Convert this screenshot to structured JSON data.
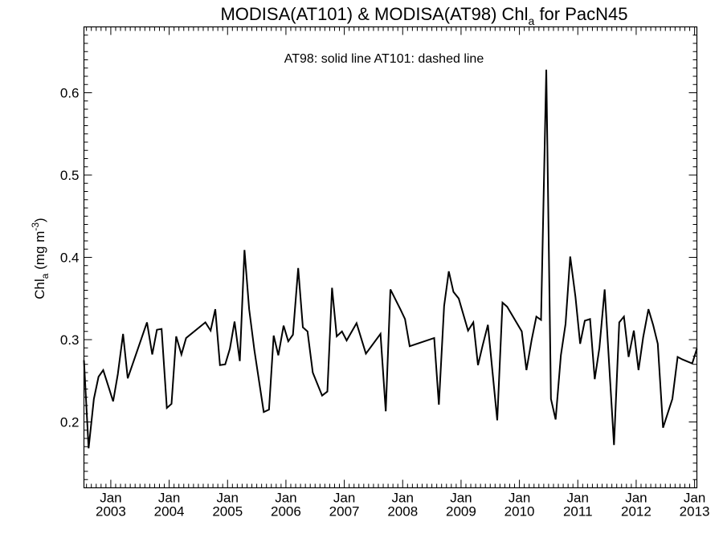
{
  "chart_data": {
    "type": "line",
    "title_main": "MODISA(AT101) & MODISA(AT98)  Chl",
    "title_sub": "a",
    "title_rest": " for PacN45",
    "ylabel_main": "Chl",
    "ylabel_sub": "a",
    "ylabel_units": " (mg m",
    "ylabel_exp": "-3",
    "ylabel_close": ")",
    "annotation": "AT98: solid line   AT101: dashed line",
    "ylim": [
      0.12,
      0.68
    ],
    "xlim": [
      2002.54,
      2013.04
    ],
    "y_ticks": [
      0.2,
      0.3,
      0.4,
      0.5,
      0.6
    ],
    "y_tick_labels": [
      "0.2",
      "0.3",
      "0.4",
      "0.5",
      "0.6"
    ],
    "x_ticks": [
      2003.0,
      2004.0,
      2005.0,
      2006.0,
      2007.0,
      2008.0,
      2009.0,
      2010.0,
      2011.0,
      2012.0,
      2013.0
    ],
    "x_tick_month": [
      "Jan",
      "Jan",
      "Jan",
      "Jan",
      "Jan",
      "Jan",
      "Jan",
      "Jan",
      "Jan",
      "Jan",
      "Jan"
    ],
    "x_tick_year": [
      "2003",
      "2004",
      "2005",
      "2006",
      "2007",
      "2008",
      "2009",
      "2010",
      "2011",
      "2012",
      "2013"
    ],
    "series": [
      {
        "style": "solid",
        "x": [
          2002.54,
          2002.62,
          2002.71,
          2002.79,
          2002.87,
          2002.96,
          2003.04,
          2003.12,
          2003.21,
          2003.29,
          2003.62,
          2003.71,
          2003.79,
          2003.87,
          2003.96,
          2004.04,
          2004.12,
          2004.21,
          2004.29,
          2004.62,
          2004.71,
          2004.79,
          2004.87,
          2004.96,
          2005.04,
          2005.12,
          2005.21,
          2005.29,
          2005.37,
          2005.46,
          2005.62,
          2005.71,
          2005.79,
          2005.87,
          2005.96,
          2006.04,
          2006.12,
          2006.21,
          2006.29,
          2006.37,
          2006.46,
          2006.62,
          2006.71,
          2006.79,
          2006.87,
          2006.96,
          2007.04,
          2007.21,
          2007.37,
          2007.62,
          2007.71,
          2007.79,
          2007.96,
          2008.04,
          2008.12,
          2008.54,
          2008.62,
          2008.71,
          2008.79,
          2008.87,
          2008.96,
          2009.12,
          2009.21,
          2009.29,
          2009.37,
          2009.46,
          2009.62,
          2009.71,
          2009.79,
          2010.04,
          2010.12,
          2010.21,
          2010.29,
          2010.37,
          2010.46,
          2010.54,
          2010.62,
          2010.71,
          2010.79,
          2010.87,
          2010.96,
          2011.04,
          2011.12,
          2011.21,
          2011.29,
          2011.37,
          2011.46,
          2011.62,
          2011.71,
          2011.79,
          2011.87,
          2011.96,
          2012.04,
          2012.12,
          2012.21,
          2012.29,
          2012.37,
          2012.46,
          2012.62,
          2012.71,
          2012.79,
          2012.96,
          2013.04
        ],
        "y": [
          0.275,
          0.168,
          0.228,
          0.255,
          0.263,
          0.243,
          0.225,
          0.258,
          0.307,
          0.253,
          0.321,
          0.282,
          0.312,
          0.313,
          0.217,
          0.222,
          0.304,
          0.282,
          0.302,
          0.321,
          0.311,
          0.337,
          0.269,
          0.27,
          0.289,
          0.322,
          0.274,
          0.409,
          0.337,
          0.287,
          0.212,
          0.215,
          0.305,
          0.281,
          0.317,
          0.298,
          0.306,
          0.387,
          0.315,
          0.31,
          0.26,
          0.232,
          0.237,
          0.363,
          0.304,
          0.31,
          0.299,
          0.32,
          0.283,
          0.307,
          0.213,
          0.361,
          0.337,
          0.325,
          0.292,
          0.302,
          0.221,
          0.341,
          0.383,
          0.358,
          0.35,
          0.311,
          0.321,
          0.269,
          0.293,
          0.318,
          0.202,
          0.345,
          0.34,
          0.31,
          0.263,
          0.3,
          0.328,
          0.324,
          0.628,
          0.228,
          0.203,
          0.281,
          0.319,
          0.401,
          0.352,
          0.295,
          0.323,
          0.325,
          0.252,
          0.29,
          0.361,
          0.172,
          0.321,
          0.328,
          0.279,
          0.311,
          0.263,
          0.303,
          0.337,
          0.318,
          0.295,
          0.193,
          0.228,
          0.279,
          0.276,
          0.271,
          0.289
        ]
      }
    ]
  }
}
